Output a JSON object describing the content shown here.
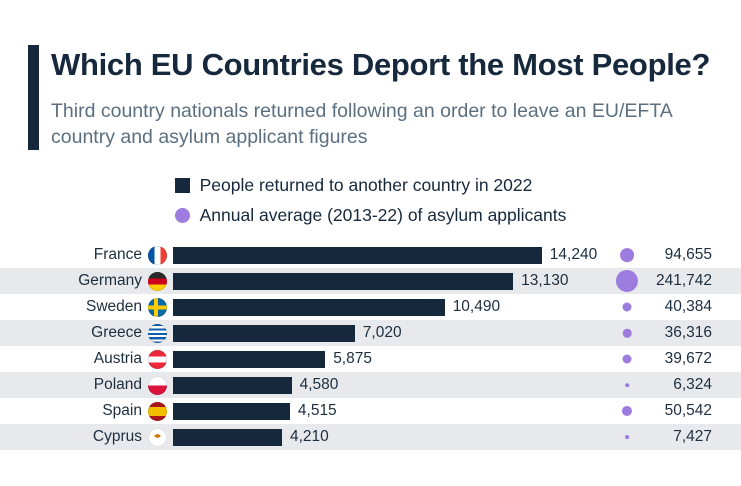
{
  "title": "Which EU Countries Deport the Most People?",
  "subtitle": "Third country nationals returned following an order to leave an EU/EFTA country and asylum applicant figures",
  "legend": [
    {
      "label": "People returned to another country in 2022",
      "marker": "square",
      "color": "#16283c"
    },
    {
      "label": "Annual average (2013-22) of asylum applicants",
      "marker": "circle",
      "color": "#9d7ce0"
    }
  ],
  "colors": {
    "bar": "#16283c",
    "dot": "#9d7ce0",
    "stripe": "#e7e9ec",
    "title": "#16283c",
    "subtitle": "#5b6f80"
  },
  "chart_data": {
    "type": "bar",
    "orientation": "horizontal",
    "title": "Which EU Countries Deport the Most People?",
    "subtitle": "Third country nationals returned following an order to leave an EU/EFTA country and asylum applicant figures",
    "categories": [
      "France",
      "Germany",
      "Sweden",
      "Greece",
      "Austria",
      "Poland",
      "Spain",
      "Cyprus"
    ],
    "flags": [
      "fr",
      "de",
      "se",
      "gr",
      "at",
      "pl",
      "es",
      "cy"
    ],
    "series": [
      {
        "name": "People returned to another country in 2022",
        "values": [
          14240,
          13130,
          10490,
          7020,
          5875,
          4580,
          4515,
          4210
        ],
        "labels": [
          "14,240",
          "13,130",
          "10,490",
          "7,020",
          "5,875",
          "4,580",
          "4,515",
          "4,210"
        ]
      },
      {
        "name": "Annual average (2013-22) of asylum applicants",
        "values": [
          94655,
          241742,
          40384,
          36316,
          39672,
          6324,
          50542,
          7427
        ],
        "labels": [
          "94,655",
          "241,742",
          "40,384",
          "36,316",
          "39,672",
          "6,324",
          "50,542",
          "7,427"
        ]
      }
    ],
    "xlim": [
      0,
      14500
    ],
    "grid": false,
    "legend_position": "top"
  }
}
